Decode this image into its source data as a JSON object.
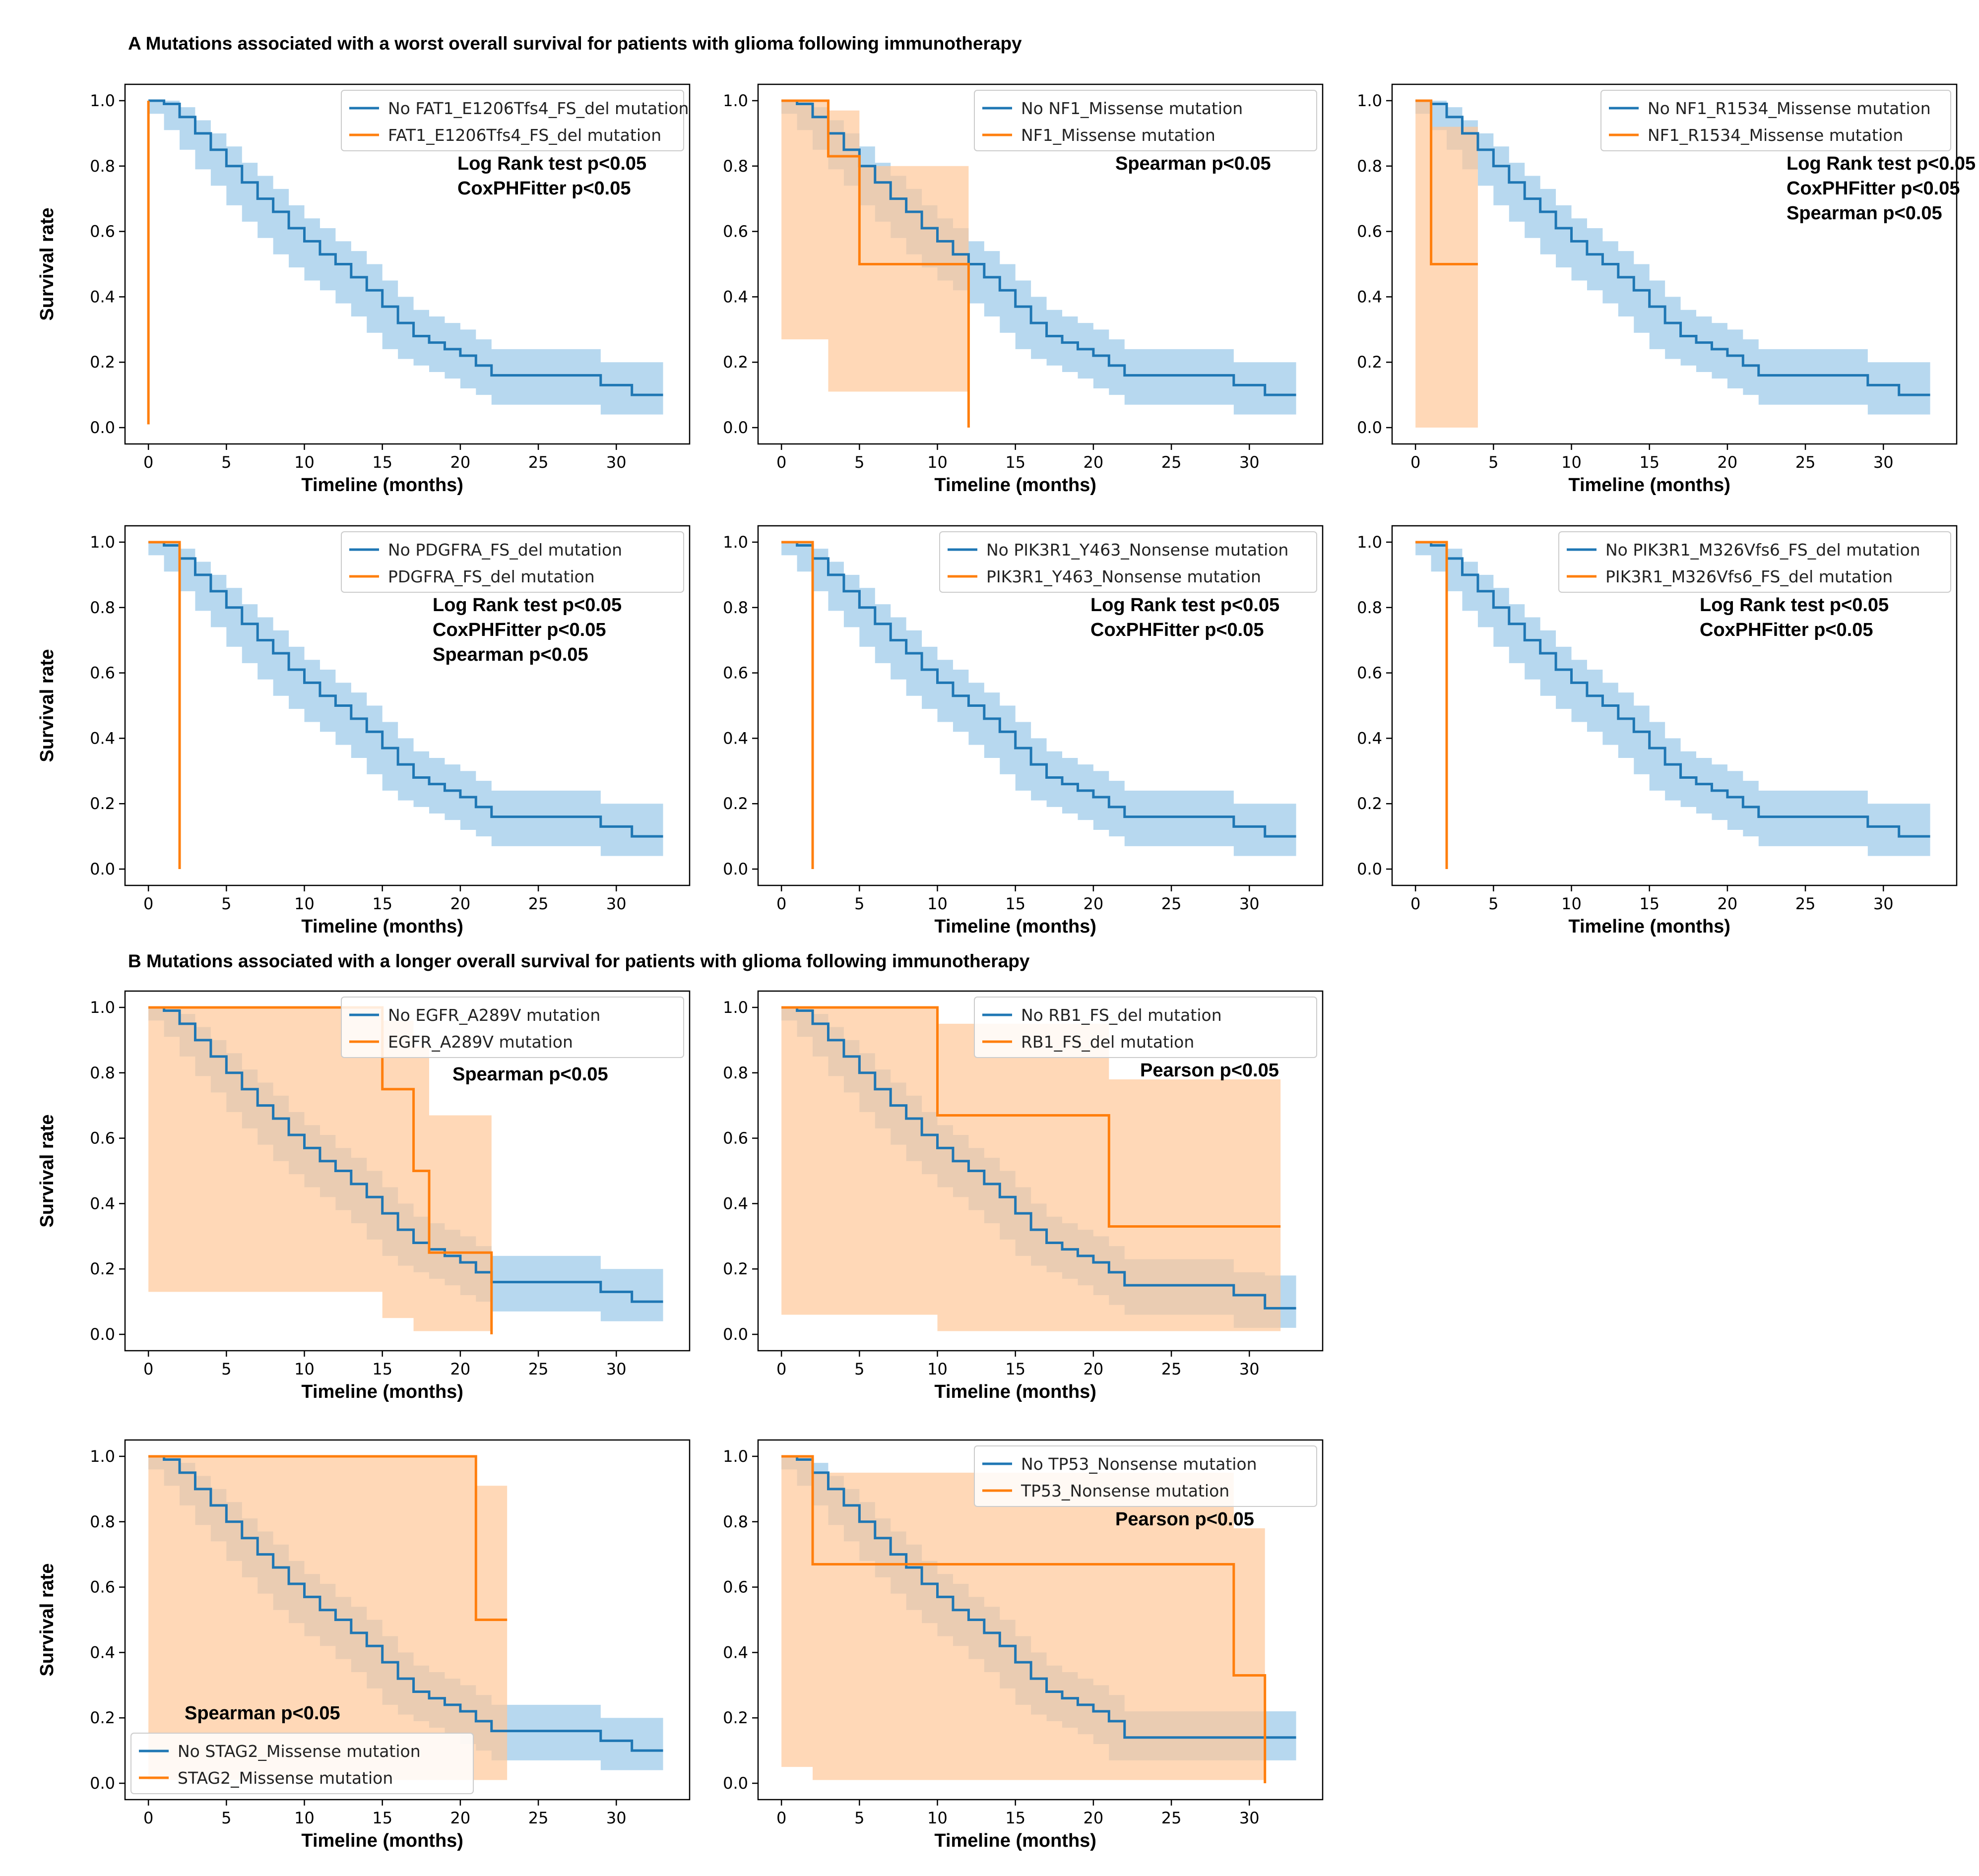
{
  "figure": {
    "section_a_title": "A Mutations associated with a worst overall survival for patients with glioma following immunotherapy",
    "section_b_title": "B Mutations associated with a longer overall survival for patients with glioma following immunotherapy"
  },
  "colors": {
    "reference": "#1f77b4",
    "mutation": "#ff7f0e",
    "reference_band": "#9fcbe9",
    "mutation_band": "#ffc899"
  },
  "chart_data": [
    {
      "id": "A1",
      "type": "line",
      "xlabel": "Timeline (months)",
      "ylabel": "Survival rate",
      "xlim": [
        -1.5,
        34.7
      ],
      "ylim": [
        -0.05,
        1.05
      ],
      "xticks": [
        0,
        5,
        10,
        15,
        20,
        25,
        30
      ],
      "yticks": [
        "0.0",
        "0.2",
        "0.4",
        "0.6",
        "0.8",
        "1.0"
      ],
      "legend_position": "top-right",
      "stats": [
        "Log Rank test p<0.05",
        "CoxPHFitter p<0.05"
      ],
      "stats_position": "right",
      "series": [
        {
          "name": "No FAT1_E1206Tfs4_FS_del mutation",
          "role": "reference",
          "curve": "reference"
        },
        {
          "name": "FAT1_E1206Tfs4_FS_del mutation",
          "role": "mutation",
          "x": [
            0,
            0
          ],
          "y": [
            1.0,
            0.01
          ],
          "ci_lower": null,
          "ci_upper": null
        }
      ]
    },
    {
      "id": "A2",
      "type": "line",
      "xlabel": "Timeline (months)",
      "ylabel": "",
      "xlim": [
        -1.5,
        34.7
      ],
      "ylim": [
        -0.05,
        1.05
      ],
      "xticks": [
        0,
        5,
        10,
        15,
        20,
        25,
        30
      ],
      "yticks": [
        "0.0",
        "0.2",
        "0.4",
        "0.6",
        "0.8",
        "1.0"
      ],
      "legend_position": "top-right",
      "stats": [
        "Spearman p<0.05"
      ],
      "stats_position": "right",
      "series": [
        {
          "name": "No NF1_Missense mutation",
          "role": "reference",
          "curve": "reference"
        },
        {
          "name": "NF1_Missense mutation",
          "role": "mutation",
          "x": [
            0,
            3,
            5,
            12,
            12
          ],
          "y": [
            1.0,
            0.83,
            0.5,
            0.5,
            0.0
          ],
          "ci_lower": [
            1.0,
            0.27,
            0.11,
            0.11,
            0.11
          ],
          "ci_upper": [
            1.0,
            0.97,
            0.8,
            0.8,
            0.8
          ]
        }
      ]
    },
    {
      "id": "A3",
      "type": "line",
      "xlabel": "Timeline (months)",
      "ylabel": "",
      "xlim": [
        -1.5,
        34.7
      ],
      "ylim": [
        -0.05,
        1.05
      ],
      "xticks": [
        0,
        5,
        10,
        15,
        20,
        25,
        30
      ],
      "yticks": [
        "0.0",
        "0.2",
        "0.4",
        "0.6",
        "0.8",
        "1.0"
      ],
      "legend_position": "top-right",
      "stats": [
        "Log Rank test p<0.05",
        "CoxPHFitter p<0.05",
        "Spearman p<0.05"
      ],
      "stats_position": "right",
      "series": [
        {
          "name": "No NF1_R1534_Missense mutation",
          "role": "reference",
          "curve": "reference"
        },
        {
          "name": "NF1_R1534_Missense mutation",
          "role": "mutation",
          "x": [
            0,
            1,
            4
          ],
          "y": [
            1.0,
            0.5,
            0.5
          ],
          "ci_lower": [
            1.0,
            0.0,
            0.0
          ],
          "ci_upper": [
            1.0,
            0.92,
            0.92
          ]
        }
      ]
    },
    {
      "id": "A4",
      "type": "line",
      "xlabel": "Timeline (months)",
      "ylabel": "Survival rate",
      "xlim": [
        -1.5,
        34.7
      ],
      "ylim": [
        -0.05,
        1.05
      ],
      "xticks": [
        0,
        5,
        10,
        15,
        20,
        25,
        30
      ],
      "yticks": [
        "0.0",
        "0.2",
        "0.4",
        "0.6",
        "0.8",
        "1.0"
      ],
      "legend_position": "top-right",
      "stats": [
        "Log Rank test p<0.05",
        "CoxPHFitter p<0.05",
        "Spearman p<0.05"
      ],
      "stats_position": "right",
      "series": [
        {
          "name": "No PDGFRA_FS_del mutation",
          "role": "reference",
          "curve": "reference"
        },
        {
          "name": "PDGFRA_FS_del mutation",
          "role": "mutation",
          "x": [
            0,
            2,
            2
          ],
          "y": [
            1.0,
            1.0,
            0.0
          ],
          "ci_lower": null,
          "ci_upper": null
        }
      ]
    },
    {
      "id": "A5",
      "type": "line",
      "xlabel": "Timeline (months)",
      "ylabel": "",
      "xlim": [
        -1.5,
        34.7
      ],
      "ylim": [
        -0.05,
        1.05
      ],
      "xticks": [
        0,
        5,
        10,
        15,
        20,
        25,
        30
      ],
      "yticks": [
        "0.0",
        "0.2",
        "0.4",
        "0.6",
        "0.8",
        "1.0"
      ],
      "legend_position": "top-right",
      "stats": [
        "Log Rank test p<0.05",
        "CoxPHFitter p<0.05"
      ],
      "stats_position": "right",
      "series": [
        {
          "name": "No PIK3R1_Y463_Nonsense mutation",
          "role": "reference",
          "curve": "reference"
        },
        {
          "name": "PIK3R1_Y463_Nonsense mutation",
          "role": "mutation",
          "x": [
            0,
            2,
            2
          ],
          "y": [
            1.0,
            1.0,
            0.0
          ],
          "ci_lower": null,
          "ci_upper": null
        }
      ]
    },
    {
      "id": "A6",
      "type": "line",
      "xlabel": "Timeline (months)",
      "ylabel": "",
      "xlim": [
        -1.5,
        34.7
      ],
      "ylim": [
        -0.05,
        1.05
      ],
      "xticks": [
        0,
        5,
        10,
        15,
        20,
        25,
        30
      ],
      "yticks": [
        "0.0",
        "0.2",
        "0.4",
        "0.6",
        "0.8",
        "1.0"
      ],
      "legend_position": "top-right",
      "stats": [
        "Log Rank test p<0.05",
        "CoxPHFitter p<0.05"
      ],
      "stats_position": "right",
      "series": [
        {
          "name": "No PIK3R1_M326Vfs6_FS_del mutation",
          "role": "reference",
          "curve": "reference"
        },
        {
          "name": "PIK3R1_M326Vfs6_FS_del mutation",
          "role": "mutation",
          "x": [
            0,
            2,
            2
          ],
          "y": [
            1.0,
            1.0,
            0.0
          ],
          "ci_lower": null,
          "ci_upper": null
        }
      ]
    },
    {
      "id": "B1",
      "type": "line",
      "xlabel": "Timeline (months)",
      "ylabel": "Survival rate",
      "xlim": [
        -1.5,
        34.7
      ],
      "ylim": [
        -0.05,
        1.05
      ],
      "xticks": [
        0,
        5,
        10,
        15,
        20,
        25,
        30
      ],
      "yticks": [
        "0.0",
        "0.2",
        "0.4",
        "0.6",
        "0.8",
        "1.0"
      ],
      "legend_position": "top-right",
      "stats": [
        "Spearman p<0.05"
      ],
      "stats_position": "center",
      "series": [
        {
          "name": "No EGFR_A289V mutation",
          "role": "reference",
          "curve": "reference"
        },
        {
          "name": "EGFR_A289V mutation",
          "role": "mutation",
          "x": [
            0,
            15,
            17,
            18,
            22,
            22
          ],
          "y": [
            1.0,
            0.75,
            0.5,
            0.25,
            0.25,
            0.0
          ],
          "ci_lower": [
            1.0,
            0.13,
            0.05,
            0.01,
            0.01,
            0.01
          ],
          "ci_upper": [
            1.0,
            0.96,
            0.88,
            0.67,
            0.67,
            0.67
          ]
        }
      ]
    },
    {
      "id": "B2",
      "type": "line",
      "xlabel": "Timeline (months)",
      "ylabel": "",
      "xlim": [
        -1.5,
        34.7
      ],
      "ylim": [
        -0.05,
        1.05
      ],
      "xticks": [
        0,
        5,
        10,
        15,
        20,
        25,
        30
      ],
      "yticks": [
        "0.0",
        "0.2",
        "0.4",
        "0.6",
        "0.8",
        "1.0"
      ],
      "legend_position": "top-right",
      "stats": [
        "Pearson p<0.05"
      ],
      "stats_position": "right",
      "series": [
        {
          "name": "No RB1_FS_del mutation",
          "role": "reference",
          "curve": "reference_b2"
        },
        {
          "name": "RB1_FS_del mutation",
          "role": "mutation",
          "x": [
            0,
            10,
            21,
            32
          ],
          "y": [
            1.0,
            0.67,
            0.33,
            0.33
          ],
          "ci_lower": [
            1.0,
            0.06,
            0.01,
            0.01
          ],
          "ci_upper": [
            1.0,
            0.95,
            0.78,
            0.78
          ]
        }
      ]
    },
    {
      "id": "B3",
      "type": "line",
      "xlabel": "Timeline (months)",
      "ylabel": "Survival rate",
      "xlim": [
        -1.5,
        34.7
      ],
      "ylim": [
        -0.05,
        1.05
      ],
      "xticks": [
        0,
        5,
        10,
        15,
        20,
        25,
        30
      ],
      "yticks": [
        "0.0",
        "0.2",
        "0.4",
        "0.6",
        "0.8",
        "1.0"
      ],
      "legend_position": "bottom-left",
      "stats": [
        "Spearman p<0.05"
      ],
      "stats_position": "bottom-left",
      "series": [
        {
          "name": "No STAG2_Missense mutation",
          "role": "reference",
          "curve": "reference"
        },
        {
          "name": "STAG2_Missense mutation",
          "role": "mutation",
          "x": [
            0,
            21,
            23
          ],
          "y": [
            1.0,
            0.5,
            0.5
          ],
          "ci_lower": [
            1.0,
            0.01,
            0.01
          ],
          "ci_upper": [
            1.0,
            0.91,
            0.91
          ]
        }
      ]
    },
    {
      "id": "B4",
      "type": "line",
      "xlabel": "Timeline (months)",
      "ylabel": "",
      "xlim": [
        -1.5,
        34.7
      ],
      "ylim": [
        -0.05,
        1.05
      ],
      "xticks": [
        0,
        5,
        10,
        15,
        20,
        25,
        30
      ],
      "yticks": [
        "0.0",
        "0.2",
        "0.4",
        "0.6",
        "0.8",
        "1.0"
      ],
      "legend_position": "top-right",
      "stats": [
        "Pearson p<0.05"
      ],
      "stats_position": "right",
      "series": [
        {
          "name": "No TP53_Nonsense mutation",
          "role": "reference",
          "curve": "reference_b4"
        },
        {
          "name": "TP53_Nonsense mutation",
          "role": "mutation",
          "x": [
            0,
            2,
            29,
            31,
            31
          ],
          "y": [
            1.0,
            0.67,
            0.33,
            0.33,
            0.0
          ],
          "ci_lower": [
            1.0,
            0.05,
            0.01,
            0.01,
            0.01
          ],
          "ci_upper": [
            1.0,
            0.95,
            0.78,
            0.78,
            0.78
          ]
        }
      ]
    }
  ],
  "reference_curves": {
    "reference": {
      "x": [
        0,
        1,
        2,
        3,
        4,
        5,
        6,
        7,
        8,
        9,
        10,
        11,
        12,
        13,
        14,
        15,
        16,
        17,
        18,
        19,
        20,
        21,
        22,
        29,
        31,
        33
      ],
      "y": [
        1.0,
        0.99,
        0.95,
        0.9,
        0.85,
        0.8,
        0.75,
        0.7,
        0.66,
        0.61,
        0.57,
        0.53,
        0.5,
        0.46,
        0.42,
        0.37,
        0.32,
        0.28,
        0.26,
        0.24,
        0.22,
        0.19,
        0.16,
        0.13,
        0.1,
        0.1
      ],
      "ci_lower": [
        1.0,
        0.96,
        0.91,
        0.85,
        0.79,
        0.74,
        0.68,
        0.63,
        0.58,
        0.53,
        0.49,
        0.45,
        0.42,
        0.38,
        0.34,
        0.29,
        0.24,
        0.21,
        0.19,
        0.17,
        0.15,
        0.12,
        0.1,
        0.07,
        0.04,
        0.04
      ],
      "ci_upper": [
        1.0,
        1.0,
        0.98,
        0.94,
        0.9,
        0.86,
        0.81,
        0.77,
        0.73,
        0.68,
        0.64,
        0.61,
        0.57,
        0.54,
        0.5,
        0.45,
        0.4,
        0.36,
        0.34,
        0.32,
        0.3,
        0.27,
        0.24,
        0.2,
        0.2,
        0.2
      ]
    },
    "reference_b2": {
      "x": [
        0,
        1,
        2,
        3,
        4,
        5,
        6,
        7,
        8,
        9,
        10,
        11,
        12,
        13,
        14,
        15,
        16,
        17,
        18,
        19,
        20,
        21,
        22,
        29,
        31,
        33
      ],
      "y": [
        1.0,
        0.99,
        0.95,
        0.9,
        0.85,
        0.8,
        0.75,
        0.7,
        0.66,
        0.61,
        0.57,
        0.53,
        0.5,
        0.46,
        0.42,
        0.37,
        0.32,
        0.28,
        0.26,
        0.24,
        0.22,
        0.19,
        0.15,
        0.12,
        0.08,
        0.08
      ],
      "ci_lower": [
        1.0,
        0.96,
        0.91,
        0.85,
        0.79,
        0.74,
        0.68,
        0.63,
        0.58,
        0.53,
        0.49,
        0.45,
        0.42,
        0.38,
        0.34,
        0.29,
        0.24,
        0.21,
        0.19,
        0.17,
        0.15,
        0.12,
        0.09,
        0.06,
        0.02,
        0.02
      ],
      "ci_upper": [
        1.0,
        1.0,
        0.98,
        0.94,
        0.9,
        0.86,
        0.81,
        0.77,
        0.73,
        0.68,
        0.64,
        0.61,
        0.57,
        0.54,
        0.5,
        0.45,
        0.4,
        0.36,
        0.34,
        0.32,
        0.3,
        0.27,
        0.23,
        0.19,
        0.18,
        0.18
      ]
    },
    "reference_b4": {
      "x": [
        0,
        1,
        2,
        3,
        4,
        5,
        6,
        7,
        8,
        9,
        10,
        11,
        12,
        13,
        14,
        15,
        16,
        17,
        18,
        19,
        20,
        21,
        22,
        33
      ],
      "y": [
        1.0,
        0.99,
        0.95,
        0.9,
        0.85,
        0.8,
        0.75,
        0.7,
        0.66,
        0.61,
        0.57,
        0.53,
        0.5,
        0.46,
        0.42,
        0.37,
        0.32,
        0.28,
        0.26,
        0.24,
        0.22,
        0.19,
        0.14,
        0.14
      ],
      "ci_lower": [
        1.0,
        0.96,
        0.91,
        0.85,
        0.79,
        0.74,
        0.68,
        0.63,
        0.58,
        0.53,
        0.49,
        0.45,
        0.42,
        0.38,
        0.34,
        0.29,
        0.24,
        0.21,
        0.19,
        0.17,
        0.15,
        0.12,
        0.07,
        0.07
      ],
      "ci_upper": [
        1.0,
        1.0,
        0.98,
        0.94,
        0.9,
        0.86,
        0.81,
        0.77,
        0.73,
        0.68,
        0.64,
        0.61,
        0.57,
        0.54,
        0.5,
        0.45,
        0.4,
        0.36,
        0.34,
        0.32,
        0.3,
        0.27,
        0.22,
        0.22
      ]
    }
  }
}
